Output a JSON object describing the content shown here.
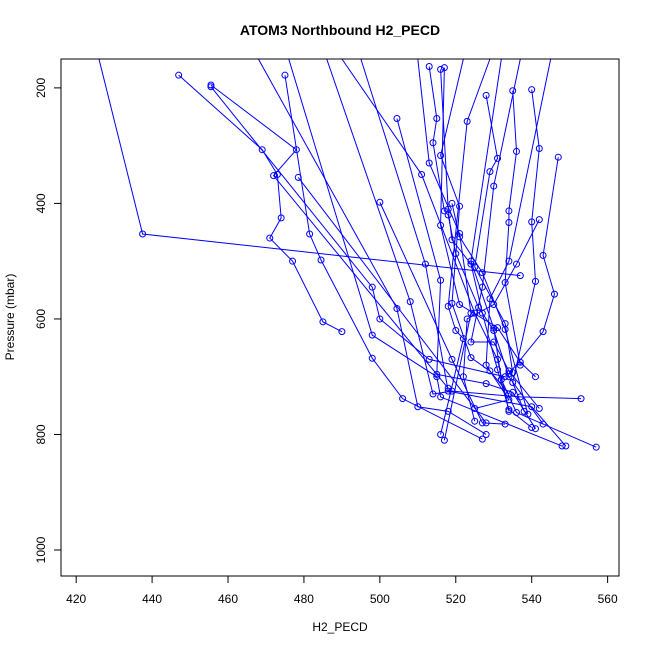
{
  "chart_data": {
    "type": "line",
    "title": "ATOM3 Northbound H2_PECD",
    "xlabel": "H2_PECD",
    "ylabel": "Pressure (mbar)",
    "xlim": [
      416,
      563
    ],
    "ylim": [
      1045,
      150
    ],
    "y_reversed": true,
    "x_ticks": [
      420,
      440,
      460,
      480,
      500,
      520,
      540,
      560
    ],
    "y_ticks": [
      200,
      400,
      600,
      800,
      1000
    ],
    "grid": false,
    "legend": "none",
    "marker": "open-circle",
    "color": "#0000ff",
    "x_tick_labels": [
      "420",
      "440",
      "460",
      "480",
      "500",
      "520",
      "540",
      "560"
    ],
    "y_tick_labels": [
      "200",
      "400",
      "600",
      "800",
      "1000"
    ],
    "series": [
      {
        "points": [
          [
            426,
            150
          ],
          [
            437.5,
            453
          ],
          [
            537,
            525
          ]
        ]
      },
      {
        "points": [
          [
            447,
            178
          ],
          [
            469,
            307
          ],
          [
            473,
            350
          ],
          [
            474,
            425
          ],
          [
            471,
            460
          ],
          [
            477,
            500
          ],
          [
            485,
            605
          ],
          [
            490,
            622
          ]
        ]
      },
      {
        "points": [
          [
            455.5,
            198
          ],
          [
            498,
            545
          ],
          [
            500,
            600
          ],
          [
            513,
            670
          ],
          [
            533,
            700
          ]
        ]
      },
      {
        "points": [
          [
            455.5,
            195
          ],
          [
            478,
            307
          ],
          [
            472,
            352
          ],
          [
            518,
            720
          ]
        ]
      },
      {
        "points": [
          [
            475,
            178
          ],
          [
            481.5,
            453
          ],
          [
            484.5,
            498
          ],
          [
            498,
            668
          ],
          [
            506,
            738
          ],
          [
            527,
            808
          ]
        ]
      },
      {
        "points": [
          [
            478.5,
            355
          ],
          [
            528,
            780
          ]
        ]
      },
      {
        "points": [
          [
            468,
            150
          ],
          [
            504.5,
            582
          ],
          [
            510,
            752
          ],
          [
            518,
            760
          ],
          [
            528,
            800
          ]
        ]
      },
      {
        "points": [
          [
            476,
            150
          ],
          [
            498,
            628
          ],
          [
            515,
            700
          ],
          [
            516,
            735
          ],
          [
            548,
            820
          ]
        ]
      },
      {
        "points": [
          [
            486,
            150
          ],
          [
            508,
            570
          ],
          [
            514,
            730
          ],
          [
            519,
            725
          ],
          [
            537,
            735
          ],
          [
            553,
            738
          ]
        ]
      },
      {
        "points": [
          [
            495,
            150
          ],
          [
            512,
            505
          ],
          [
            518,
            725
          ],
          [
            540,
            752
          ],
          [
            549,
            820
          ]
        ]
      },
      {
        "points": [
          [
            500,
            398
          ],
          [
            519,
            670
          ],
          [
            527,
            780
          ],
          [
            533,
            782
          ]
        ]
      },
      {
        "points": [
          [
            504.5,
            253
          ],
          [
            516,
            533
          ],
          [
            515,
            696
          ],
          [
            528,
            712
          ],
          [
            535,
            727
          ],
          [
            541,
            790
          ]
        ]
      },
      {
        "points": [
          [
            513,
            163
          ],
          [
            515,
            253
          ],
          [
            514,
            295
          ],
          [
            517,
            413
          ],
          [
            518,
            420
          ],
          [
            520,
            487
          ],
          [
            526,
            580
          ],
          [
            530,
            620
          ],
          [
            534,
            700
          ],
          [
            543,
            782
          ]
        ]
      },
      {
        "points": [
          [
            517,
            165
          ],
          [
            516,
            438
          ],
          [
            521,
            575
          ],
          [
            531,
            615
          ],
          [
            537,
            675
          ],
          [
            541,
            700
          ]
        ]
      },
      {
        "points": [
          [
            516,
            168
          ],
          [
            518,
            410
          ],
          [
            519,
            463
          ],
          [
            524,
            505
          ],
          [
            527,
            590
          ],
          [
            531,
            688
          ],
          [
            534,
            757
          ],
          [
            540,
            788
          ]
        ]
      },
      {
        "points": [
          [
            522,
            150
          ],
          [
            516,
            317
          ],
          [
            521,
            405
          ],
          [
            519,
            573
          ],
          [
            524,
            667
          ],
          [
            529,
            690
          ],
          [
            534,
            730
          ]
        ]
      },
      {
        "points": [
          [
            528,
            213
          ],
          [
            531,
            322
          ],
          [
            529,
            345
          ],
          [
            525,
            510
          ],
          [
            533,
            608
          ],
          [
            535,
            693
          ]
        ]
      },
      {
        "points": [
          [
            535,
            205
          ],
          [
            536,
            310
          ],
          [
            534,
            413
          ],
          [
            534,
            433
          ],
          [
            533,
            537
          ],
          [
            537,
            680
          ]
        ]
      },
      {
        "points": [
          [
            540,
            203
          ],
          [
            542,
            305
          ],
          [
            540,
            432
          ],
          [
            541,
            535
          ],
          [
            535,
            710
          ],
          [
            538,
            760
          ]
        ]
      },
      {
        "points": [
          [
            547,
            320
          ],
          [
            543,
            490
          ],
          [
            546,
            557
          ],
          [
            543,
            622
          ],
          [
            534,
            695
          ]
        ]
      },
      {
        "points": [
          [
            542,
            428
          ],
          [
            536,
            505
          ],
          [
            530,
            575
          ],
          [
            523,
            600
          ],
          [
            522,
            700
          ],
          [
            525,
            777
          ]
        ]
      },
      {
        "points": [
          [
            519,
            400
          ],
          [
            521,
            458
          ],
          [
            527,
            520
          ],
          [
            533,
            618
          ],
          [
            539,
            765
          ]
        ]
      },
      {
        "points": [
          [
            529,
            150
          ],
          [
            523,
            258
          ],
          [
            518,
            578
          ],
          [
            520,
            620
          ],
          [
            522,
            634
          ],
          [
            516,
            800
          ]
        ]
      },
      {
        "points": [
          [
            532,
            150
          ],
          [
            524,
            500
          ],
          [
            530,
            616
          ],
          [
            532,
            705
          ],
          [
            536,
            762
          ],
          [
            557,
            822
          ]
        ]
      },
      {
        "points": [
          [
            510,
            150
          ],
          [
            513,
            330
          ],
          [
            521,
            452
          ],
          [
            524,
            590
          ],
          [
            517,
            810
          ]
        ]
      },
      {
        "points": [
          [
            537,
            150
          ],
          [
            530,
            370
          ],
          [
            527,
            545
          ],
          [
            524,
            640
          ],
          [
            530,
            640
          ],
          [
            534,
            690
          ],
          [
            542,
            755
          ]
        ]
      },
      {
        "points": [
          [
            545,
            150
          ],
          [
            534,
            500
          ],
          [
            529,
            565
          ],
          [
            528,
            680
          ],
          [
            534,
            740
          ],
          [
            525,
            755
          ]
        ]
      },
      {
        "points": [
          [
            490,
            150
          ],
          [
            511,
            350
          ],
          [
            525,
            590
          ],
          [
            531,
            670
          ],
          [
            534,
            760
          ]
        ]
      }
    ]
  }
}
